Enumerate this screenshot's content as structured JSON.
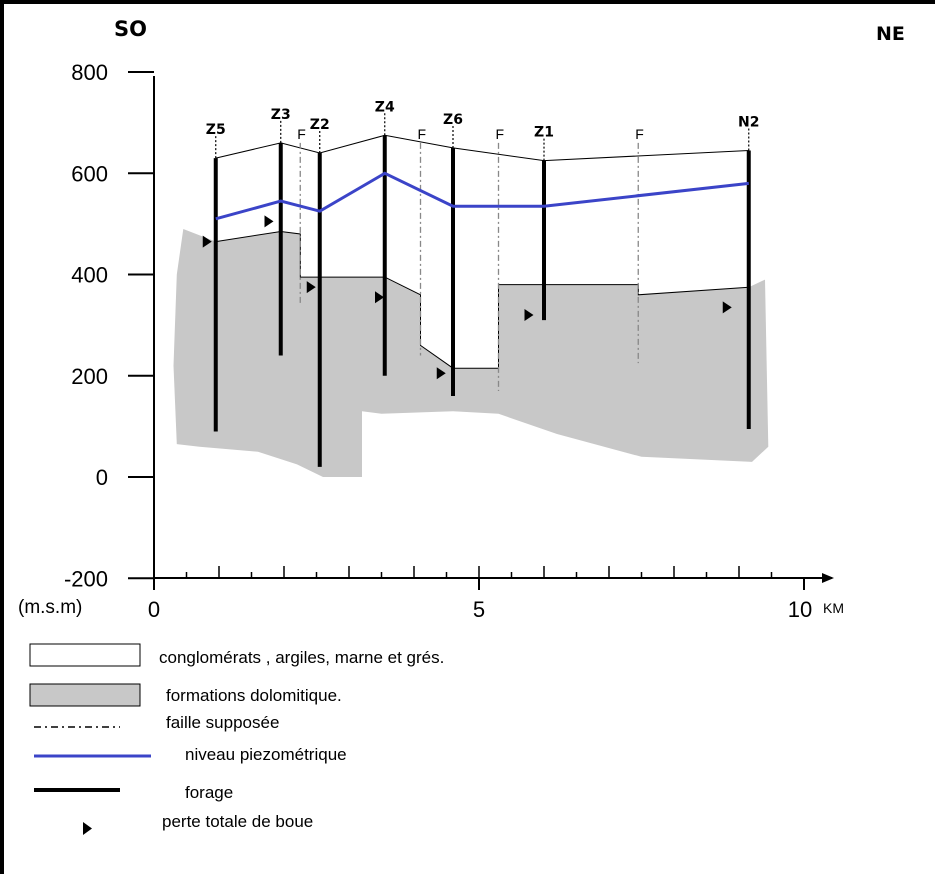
{
  "orientation": {
    "left": "SO",
    "right": "NE"
  },
  "y_axis": {
    "unit_label": "(m.s.m)",
    "ticks": [
      {
        "value": 800,
        "label": "800"
      },
      {
        "value": 600,
        "label": "600"
      },
      {
        "value": 400,
        "label": "400"
      },
      {
        "value": 200,
        "label": "200"
      },
      {
        "value": 0,
        "label": "0"
      },
      {
        "value": -200,
        "label": "-200"
      }
    ],
    "range": [
      -200,
      800
    ]
  },
  "x_axis": {
    "ticks": [
      {
        "value": 0,
        "label": "0"
      },
      {
        "value": 5,
        "label": "5"
      },
      {
        "value": 10,
        "label": "10"
      }
    ],
    "unit_label": "KM",
    "range": [
      0,
      10.5
    ]
  },
  "boreholes": [
    {
      "name": "Z5",
      "x": 0.95,
      "top": 630,
      "bottom": 90
    },
    {
      "name": "Z3",
      "x": 1.95,
      "top": 660,
      "bottom": 240
    },
    {
      "name": "Z2",
      "x": 2.55,
      "top": 640,
      "bottom": 20
    },
    {
      "name": "Z4",
      "x": 3.55,
      "top": 675,
      "bottom": 200
    },
    {
      "name": "Z6",
      "x": 4.6,
      "top": 650,
      "bottom": 160
    },
    {
      "name": "Z1",
      "x": 6.0,
      "top": 625,
      "bottom": 310
    },
    {
      "name": "N2",
      "x": 9.15,
      "top": 645,
      "bottom": 95
    }
  ],
  "faults": [
    {
      "label": "F",
      "x": 2.25,
      "top": 660,
      "bottom": 340
    },
    {
      "label": "F",
      "x": 4.1,
      "top": 660,
      "bottom": 240
    },
    {
      "label": "F",
      "x": 5.3,
      "top": 660,
      "bottom": 170
    },
    {
      "label": "F",
      "x": 7.45,
      "top": 660,
      "bottom": 225
    }
  ],
  "ground_surface": [
    [
      0.95,
      630
    ],
    [
      1.95,
      660
    ],
    [
      2.55,
      640
    ],
    [
      3.55,
      675
    ],
    [
      4.6,
      650
    ],
    [
      6.0,
      625
    ],
    [
      9.15,
      645
    ]
  ],
  "piezometric_level": [
    [
      0.95,
      510
    ],
    [
      1.95,
      545
    ],
    [
      2.55,
      525
    ],
    [
      3.55,
      600
    ],
    [
      4.6,
      535
    ],
    [
      6.0,
      535
    ],
    [
      9.15,
      580
    ]
  ],
  "dolomite_top": [
    [
      0.45,
      490
    ],
    [
      0.95,
      465
    ],
    [
      1.95,
      485
    ],
    [
      2.25,
      480
    ],
    [
      2.25,
      395
    ],
    [
      3.55,
      395
    ],
    [
      4.1,
      360
    ],
    [
      4.1,
      260
    ],
    [
      4.6,
      215
    ],
    [
      5.3,
      215
    ],
    [
      5.3,
      380
    ],
    [
      7.45,
      380
    ],
    [
      7.45,
      360
    ],
    [
      9.15,
      375
    ]
  ],
  "mud_loss_points": [
    [
      0.75,
      465
    ],
    [
      1.7,
      505
    ],
    [
      2.35,
      375
    ],
    [
      3.4,
      355
    ],
    [
      4.35,
      205
    ],
    [
      5.7,
      320
    ],
    [
      8.75,
      335
    ]
  ],
  "legend": [
    {
      "key": "conglomerates",
      "label": "conglomérats , argiles, marne et grés."
    },
    {
      "key": "dolomite",
      "label": "formations dolomitique."
    },
    {
      "key": "fault",
      "label": "faille supposée"
    },
    {
      "key": "piezo",
      "label": "niveau piezométrique"
    },
    {
      "key": "borehole",
      "label": "forage"
    },
    {
      "key": "mudloss",
      "label": "perte totale de boue"
    }
  ],
  "colors": {
    "dolomite_fill": "#c8c8c8",
    "piezometric_line": "#3b44c8",
    "borehole_line": "#000000",
    "fault_line": "#888888"
  }
}
